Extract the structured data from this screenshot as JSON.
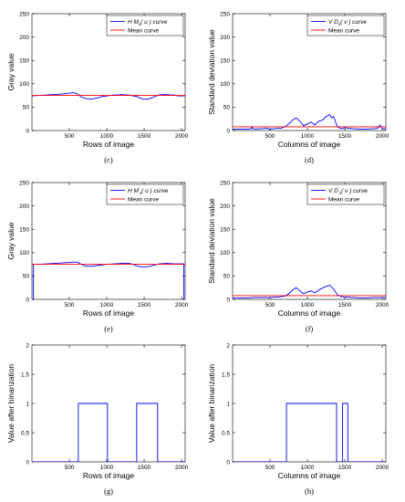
{
  "chart_data": [
    {
      "type": "line",
      "panel_label": "(c)",
      "xlabel": "Rows of image",
      "ylabel": "Gray value",
      "xlim": [
        0,
        2048
      ],
      "ylim": [
        0,
        250
      ],
      "xticks": [
        500,
        1000,
        1500,
        2000
      ],
      "yticks": [
        0,
        50,
        100,
        150,
        200,
        250
      ],
      "legend_position": "top-right",
      "series": [
        {
          "name": "H M_s( u ) curve",
          "legend_main": "H M",
          "legend_sub": "s",
          "legend_rest": "( u ) curve",
          "color": "#0000ff",
          "x": [
            0,
            100,
            200,
            300,
            400,
            500,
            550,
            600,
            650,
            700,
            750,
            800,
            850,
            900,
            950,
            1000,
            1050,
            1100,
            1150,
            1200,
            1250,
            1300,
            1350,
            1400,
            1450,
            1500,
            1550,
            1600,
            1650,
            1700,
            1750,
            1800,
            1850,
            1900,
            1950,
            2000,
            2048
          ],
          "y": [
            74,
            75,
            76,
            77,
            78,
            80,
            81,
            79,
            73,
            69,
            68,
            67,
            69,
            71,
            73,
            74,
            75,
            76,
            76,
            77,
            76,
            76,
            74,
            73,
            69,
            67,
            67,
            70,
            73,
            76,
            77,
            77,
            76,
            76,
            74,
            74,
            74
          ]
        },
        {
          "name": "Mean curve",
          "color": "#ff0000",
          "x": [
            0,
            2048
          ],
          "y": [
            75,
            75
          ]
        }
      ]
    },
    {
      "type": "line",
      "panel_label": "(d)",
      "xlabel": "Columns of image",
      "ylabel": "Standard deviation value",
      "xlim": [
        0,
        2048
      ],
      "ylim": [
        0,
        250
      ],
      "xticks": [
        500,
        1000,
        1500,
        2000
      ],
      "yticks": [
        0,
        50,
        100,
        150,
        200,
        250
      ],
      "legend_position": "top-right",
      "series": [
        {
          "name": "V D_s( v ) curve",
          "legend_main": "V D",
          "legend_sub": "s",
          "legend_rest": "( v ) curve",
          "color": "#0000ff",
          "x": [
            0,
            100,
            200,
            250,
            260,
            270,
            300,
            400,
            450,
            500,
            550,
            600,
            650,
            700,
            750,
            800,
            850,
            900,
            950,
            1000,
            1050,
            1100,
            1150,
            1200,
            1250,
            1300,
            1320,
            1350,
            1400,
            1450,
            1500,
            1550,
            1600,
            1700,
            1800,
            1900,
            1950,
            1970,
            2000,
            2048
          ],
          "y": [
            3,
            3,
            3,
            4,
            8,
            4,
            3,
            4,
            5,
            3,
            4,
            5,
            5,
            8,
            14,
            22,
            27,
            20,
            10,
            14,
            18,
            12,
            20,
            22,
            30,
            34,
            27,
            30,
            8,
            4,
            6,
            5,
            4,
            3,
            3,
            4,
            6,
            12,
            4,
            4
          ]
        },
        {
          "name": "Mean curve",
          "color": "#ff0000",
          "x": [
            0,
            2048
          ],
          "y": [
            8,
            8
          ]
        }
      ]
    },
    {
      "type": "line",
      "panel_label": "(e)",
      "xlabel": "Rows of image",
      "ylabel": "Gray value",
      "xlim": [
        0,
        2048
      ],
      "ylim": [
        0,
        250
      ],
      "xticks": [
        500,
        1000,
        1500,
        2000
      ],
      "yticks": [
        0,
        50,
        100,
        150,
        200,
        250
      ],
      "legend_position": "top-right",
      "series": [
        {
          "name": "H M'_s( u ) curve",
          "legend_main": "H M",
          "legend_sub": "s",
          "legend_prime": "'",
          "legend_rest": "( u ) curve",
          "color": "#0000ff",
          "x": [
            0,
            20,
            21,
            100,
            200,
            300,
            400,
            500,
            600,
            650,
            700,
            750,
            800,
            900,
            1000,
            1100,
            1200,
            1300,
            1350,
            1400,
            1450,
            1500,
            1550,
            1600,
            1700,
            1800,
            1900,
            2000,
            2030,
            2031,
            2048
          ],
          "y": [
            0,
            0,
            75,
            75,
            76,
            77,
            78,
            79,
            80,
            76,
            72,
            71,
            71,
            73,
            75,
            76,
            77,
            77,
            75,
            72,
            70,
            69,
            70,
            72,
            76,
            77,
            76,
            76,
            76,
            0,
            0
          ]
        },
        {
          "name": "Mean curve",
          "color": "#ff0000",
          "x": [
            0,
            2048
          ],
          "y": [
            75,
            75
          ]
        }
      ]
    },
    {
      "type": "line",
      "panel_label": "(f)",
      "xlabel": "Columns of image",
      "ylabel": "Standard deviation value",
      "xlim": [
        0,
        2048
      ],
      "ylim": [
        0,
        250
      ],
      "xticks": [
        500,
        1000,
        1500,
        2000
      ],
      "yticks": [
        0,
        50,
        100,
        150,
        200,
        250
      ],
      "legend_position": "top-right",
      "series": [
        {
          "name": "V D'_s( v ) curve",
          "legend_main": "V D",
          "legend_sub": "s",
          "legend_prime": "'",
          "legend_rest": "( v ) curve",
          "color": "#0000ff",
          "x": [
            0,
            100,
            200,
            300,
            400,
            500,
            600,
            700,
            750,
            800,
            850,
            900,
            950,
            1000,
            1050,
            1100,
            1150,
            1200,
            1250,
            1300,
            1350,
            1400,
            1450,
            1500,
            1600,
            1700,
            1800,
            1900,
            2000,
            2048
          ],
          "y": [
            3,
            3,
            3,
            4,
            4,
            4,
            5,
            7,
            12,
            20,
            25,
            18,
            12,
            16,
            18,
            14,
            20,
            24,
            28,
            30,
            22,
            10,
            6,
            5,
            4,
            3,
            3,
            4,
            4,
            4
          ]
        },
        {
          "name": "Mean curve",
          "color": "#ff0000",
          "x": [
            0,
            2048
          ],
          "y": [
            8,
            8
          ]
        }
      ]
    },
    {
      "type": "line",
      "panel_label": "(g)",
      "xlabel": "Rows of image",
      "ylabel": "Value after binarization",
      "xlim": [
        0,
        2048
      ],
      "ylim": [
        0,
        2
      ],
      "xticks": [
        500,
        1000,
        1500,
        2000
      ],
      "yticks": [
        0,
        0.5,
        1,
        1.5,
        2
      ],
      "series": [
        {
          "color": "#0000ff",
          "x": [
            0,
            620,
            620,
            1010,
            1010,
            1400,
            1400,
            1680,
            1680,
            2048
          ],
          "y": [
            0,
            0,
            1,
            1,
            0,
            0,
            1,
            1,
            0,
            0
          ]
        }
      ]
    },
    {
      "type": "line",
      "panel_label": "(h)",
      "xlabel": "Columns of image",
      "ylabel": "Value after binarization",
      "xlim": [
        0,
        2048
      ],
      "ylim": [
        0,
        2
      ],
      "xticks": [
        500,
        1000,
        1500,
        2000
      ],
      "yticks": [
        0,
        0.5,
        1,
        1.5,
        2
      ],
      "series": [
        {
          "color": "#0000ff",
          "x": [
            0,
            720,
            720,
            1390,
            1390,
            1470,
            1470,
            1540,
            1540,
            2048
          ],
          "y": [
            0,
            0,
            1,
            1,
            0,
            0,
            1,
            1,
            0,
            0
          ]
        }
      ]
    }
  ]
}
